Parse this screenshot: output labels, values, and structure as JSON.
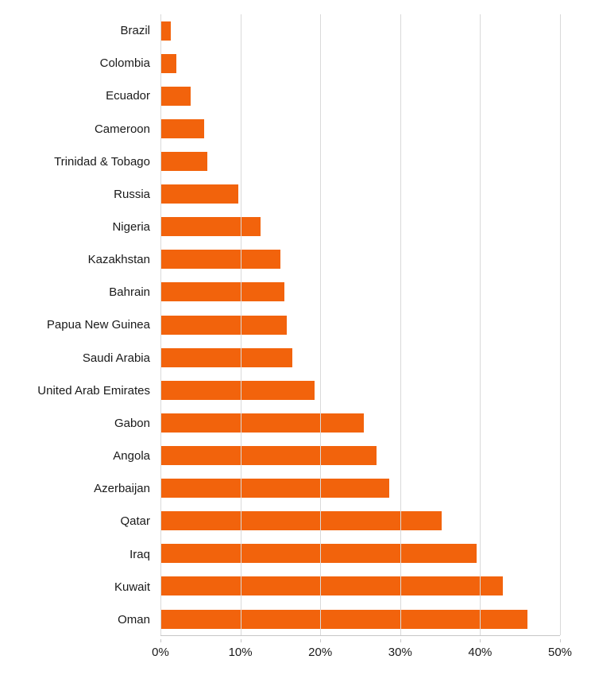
{
  "chart_data": {
    "type": "bar",
    "orientation": "horizontal",
    "title": "",
    "xlabel": "",
    "ylabel": "",
    "grid": true,
    "legend": false,
    "xlim": [
      0,
      50
    ],
    "x_ticks": [
      "0%",
      "10%",
      "20%",
      "30%",
      "40%",
      "50%"
    ],
    "x_tick_values": [
      0,
      10,
      20,
      30,
      40,
      50
    ],
    "bar_color": "#F2630C",
    "gridline_color": "#d9d9d9",
    "axis_color": "#c6c6c6",
    "text_color": "#1a1a1a",
    "categories": [
      "Brazil",
      "Colombia",
      "Ecuador",
      "Cameroon",
      "Trinidad & Tobago",
      "Russia",
      "Nigeria",
      "Kazakhstan",
      "Bahrain",
      "Papua New Guinea",
      "Saudi Arabia",
      "United Arab Emirates",
      "Gabon",
      "Angola",
      "Azerbaijan",
      "Qatar",
      "Iraq",
      "Kuwait",
      "Oman"
    ],
    "values": [
      1.3,
      2.0,
      3.8,
      5.5,
      5.9,
      9.7,
      12.5,
      15.0,
      15.5,
      15.8,
      16.5,
      19.3,
      25.4,
      27.0,
      28.6,
      35.2,
      39.6,
      42.8,
      45.9
    ],
    "unit": "%"
  }
}
